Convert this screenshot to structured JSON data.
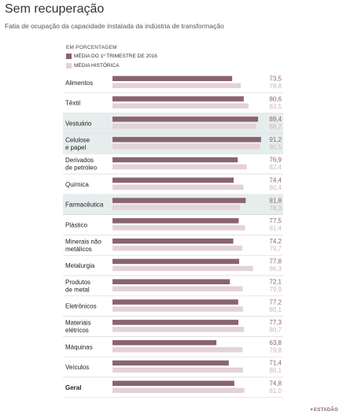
{
  "header": {
    "title": "Sem recuperação",
    "subtitle": "Fatia de ocupação da capacidade instalada da indústria de transformação"
  },
  "legend": {
    "unit_label": "EM PORCENTAGEM",
    "current_label": "MÉDIA DO 1º TRIMESTRE DE 2016",
    "historic_label": "MÉDIA HISTÓRICA"
  },
  "colors": {
    "current": "#8a6370",
    "historic": "#e3d2d6",
    "current_text": "#8a6370",
    "historic_text": "#c9b6bb",
    "highlight": "#e6eded",
    "separator": "#d8d8d8"
  },
  "brand": "✦ESTADÃO",
  "chart_data": {
    "type": "bar",
    "orientation": "horizontal",
    "title": "Sem recuperação",
    "subtitle": "Fatia de ocupação da capacidade instalada da indústria de transformação",
    "unit": "EM PORCENTAGEM",
    "legend_placement": "top-left",
    "grid": false,
    "categories": [
      "Alimentos",
      "Têxtil",
      "Vestuário",
      "Celulose\ne papel",
      "Derivados\nde petróleo",
      "Química",
      "Farmacêutica",
      "Plástico",
      "Minerais não\nmetálicos",
      "Metalurgia",
      "Produtos\nde metal",
      "Eletrônicos",
      "Materiais\nelétricos",
      "Máquinas",
      "Veículos",
      "Geral"
    ],
    "highlighted": [
      false,
      false,
      true,
      true,
      false,
      false,
      true,
      false,
      false,
      false,
      false,
      false,
      false,
      false,
      false,
      false
    ],
    "bold": [
      false,
      false,
      false,
      false,
      false,
      false,
      false,
      false,
      false,
      false,
      false,
      false,
      false,
      false,
      false,
      true
    ],
    "series": [
      {
        "name": "MÉDIA DO 1º TRIMESTRE DE 2016",
        "values": [
          73.5,
          80.6,
          89.4,
          91.2,
          76.9,
          74.4,
          81.8,
          77.5,
          74.2,
          77.8,
          72.1,
          77.2,
          77.3,
          63.8,
          71.4,
          74.8
        ]
      },
      {
        "name": "MÉDIA HISTÓRICA",
        "values": [
          78.8,
          83.5,
          88.2,
          90.5,
          82.4,
          80.4,
          78.3,
          81.4,
          79.7,
          86.3,
          79.9,
          80.1,
          80.7,
          79.8,
          80.1,
          81.0
        ]
      }
    ],
    "value_labels_current": [
      "73,5",
      "80,6",
      "89,4",
      "91,2",
      "76,9",
      "74,4",
      "81,8",
      "77,5",
      "74,2",
      "77,8",
      "72,1",
      "77,2",
      "77,3",
      "63,8",
      "71,4",
      "74,8"
    ],
    "value_labels_historic": [
      "78,8",
      "83,5",
      "88,2",
      "90,5",
      "82,4",
      "80,4",
      "78,3",
      "81,4",
      "79,7",
      "86,3",
      "79,9",
      "80,1",
      "80,7",
      "79,8",
      "80,1",
      "81,0"
    ],
    "xlim": [
      0,
      100
    ]
  }
}
